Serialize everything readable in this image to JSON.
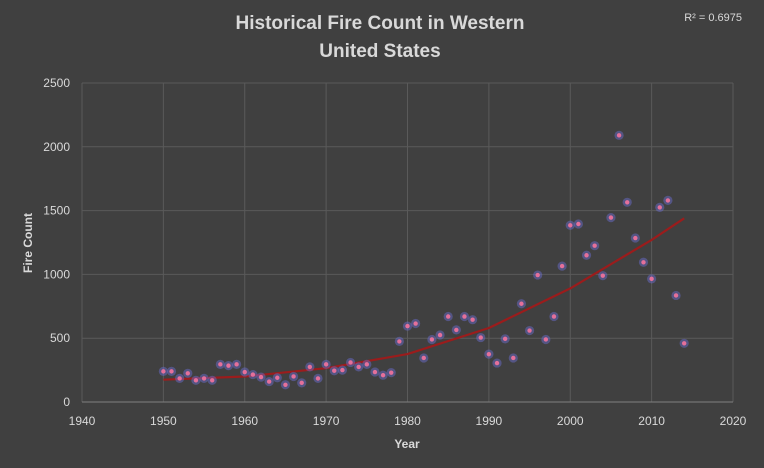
{
  "chart_data": {
    "type": "scatter",
    "title_line1": "Historical Fire Count in Western",
    "title_line2": "United States",
    "xlabel": "Year",
    "ylabel": "Fire Count",
    "xlim": [
      1940,
      2020
    ],
    "ylim": [
      0,
      2500
    ],
    "x_ticks": [
      "1940",
      "1950",
      "1960",
      "1970",
      "1980",
      "1990",
      "2000",
      "2010",
      "2020"
    ],
    "y_ticks": [
      "0",
      "500",
      "1000",
      "1500",
      "2000",
      "2500"
    ],
    "annotation": "R² = 0.6975",
    "grid": true,
    "marker_color": "#e5709a",
    "marker_glow": "#6d6fd8",
    "trendline_color": "#9b1c1c",
    "points": [
      [
        1950,
        240
      ],
      [
        1951,
        240
      ],
      [
        1952,
        185
      ],
      [
        1953,
        225
      ],
      [
        1954,
        170
      ],
      [
        1955,
        185
      ],
      [
        1956,
        170
      ],
      [
        1957,
        295
      ],
      [
        1958,
        285
      ],
      [
        1959,
        295
      ],
      [
        1960,
        235
      ],
      [
        1961,
        215
      ],
      [
        1962,
        195
      ],
      [
        1963,
        160
      ],
      [
        1964,
        190
      ],
      [
        1965,
        135
      ],
      [
        1966,
        200
      ],
      [
        1967,
        150
      ],
      [
        1968,
        275
      ],
      [
        1969,
        185
      ],
      [
        1970,
        295
      ],
      [
        1971,
        245
      ],
      [
        1972,
        250
      ],
      [
        1973,
        310
      ],
      [
        1974,
        275
      ],
      [
        1975,
        295
      ],
      [
        1976,
        235
      ],
      [
        1977,
        210
      ],
      [
        1978,
        230
      ],
      [
        1979,
        475
      ],
      [
        1980,
        595
      ],
      [
        1981,
        615
      ],
      [
        1982,
        345
      ],
      [
        1983,
        490
      ],
      [
        1984,
        525
      ],
      [
        1985,
        670
      ],
      [
        1986,
        565
      ],
      [
        1987,
        670
      ],
      [
        1988,
        645
      ],
      [
        1989,
        505
      ],
      [
        1990,
        375
      ],
      [
        1991,
        305
      ],
      [
        1992,
        495
      ],
      [
        1993,
        345
      ],
      [
        1994,
        770
      ],
      [
        1995,
        560
      ],
      [
        1996,
        995
      ],
      [
        1997,
        490
      ],
      [
        1998,
        670
      ],
      [
        1999,
        1065
      ],
      [
        2000,
        1385
      ],
      [
        2001,
        1395
      ],
      [
        2002,
        1150
      ],
      [
        2003,
        1225
      ],
      [
        2004,
        990
      ],
      [
        2005,
        1445
      ],
      [
        2006,
        2090
      ],
      [
        2007,
        1565
      ],
      [
        2008,
        1285
      ],
      [
        2009,
        1095
      ],
      [
        2010,
        965
      ],
      [
        2011,
        1525
      ],
      [
        2012,
        1580
      ],
      [
        2013,
        835
      ],
      [
        2014,
        460
      ]
    ],
    "trendline": {
      "type": "polynomial-2",
      "x_range": [
        1950,
        2014
      ],
      "y_at": [
        [
          1950,
          175
        ],
        [
          1960,
          200
        ],
        [
          1970,
          265
        ],
        [
          1980,
          375
        ],
        [
          1990,
          580
        ],
        [
          2000,
          890
        ],
        [
          2010,
          1270
        ],
        [
          2014,
          1440
        ]
      ]
    }
  }
}
